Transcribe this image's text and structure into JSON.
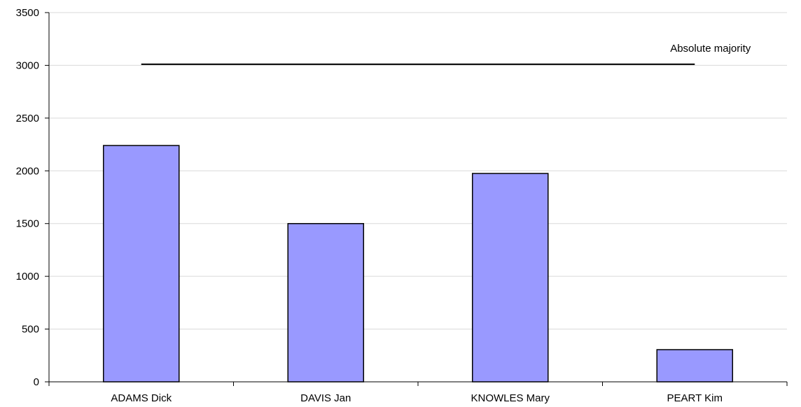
{
  "chart_data": {
    "type": "bar",
    "title": "",
    "xlabel": "",
    "ylabel": "",
    "categories": [
      "ADAMS Dick",
      "DAVIS Jan",
      "KNOWLES Mary",
      "PEART Kim"
    ],
    "values": [
      2240,
      1500,
      1975,
      305
    ],
    "ylim": [
      0,
      3500
    ],
    "yticks": [
      0,
      500,
      1000,
      1500,
      2000,
      2500,
      3000,
      3500
    ],
    "grid": true,
    "legend": "none",
    "bar_color": "#9999ff",
    "reference_line": {
      "label": "Absolute majority",
      "value": 3010,
      "x_start_category_index": 0.5,
      "x_end_category_index": 3.5
    }
  }
}
